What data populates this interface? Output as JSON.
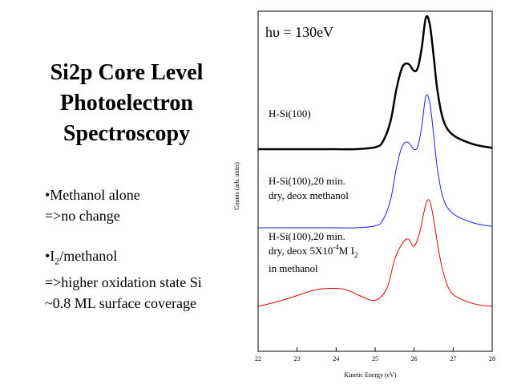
{
  "title_lines": [
    "Si2p Core Level",
    "Photoelectron",
    "Spectroscopy"
  ],
  "bullets": {
    "b1": {
      "line1": "•Methanol alone",
      "line2": "=>no change"
    },
    "b2": {
      "line1_pre": "•I",
      "line1_sub": "2",
      "line1_post": "/methanol",
      "line2": "=>higher oxidation state Si",
      "line3": "~0.8 ML surface coverage"
    }
  },
  "chart_data": {
    "type": "line",
    "xlabel": "Kinetic Energy (eV)",
    "ylabel": "Counts (arb. units)",
    "xlim": [
      22,
      28
    ],
    "x_ticks": [
      "22",
      "23",
      "24",
      "25",
      "26",
      "27",
      "28"
    ],
    "annotation": "hυ = 130eV",
    "colors": {
      "black": "#000000",
      "blue": "#1a1aff",
      "red": "#e00000"
    },
    "series": [
      {
        "label": "H-Si(100)",
        "color": "#000000",
        "x": [
          22.0,
          22.5,
          23.0,
          23.5,
          24.0,
          24.5,
          25.0,
          25.2,
          25.4,
          25.55,
          25.7,
          25.85,
          26.0,
          26.1,
          26.2,
          26.3,
          26.4,
          26.5,
          26.6,
          26.75,
          27.0,
          27.5,
          28.0
        ],
        "y": [
          0.0,
          0.0,
          0.0,
          0.0,
          0.0,
          0.0,
          0.03,
          0.12,
          0.45,
          0.95,
          1.28,
          1.33,
          1.22,
          1.28,
          1.6,
          2.05,
          1.95,
          1.45,
          0.9,
          0.45,
          0.22,
          0.08,
          0.02
        ]
      },
      {
        "label": "H-Si(100),20 min. dry, deox  methanol",
        "color": "#1a1aff",
        "x": [
          22.0,
          22.5,
          23.0,
          23.5,
          24.0,
          24.5,
          25.0,
          25.2,
          25.4,
          25.55,
          25.7,
          25.85,
          26.0,
          26.1,
          26.2,
          26.3,
          26.4,
          26.5,
          26.6,
          26.75,
          27.0,
          27.5,
          28.0
        ],
        "y": [
          0.0,
          0.0,
          0.0,
          0.0,
          0.0,
          0.0,
          0.03,
          0.12,
          0.45,
          0.95,
          1.28,
          1.33,
          1.22,
          1.28,
          1.6,
          2.05,
          1.95,
          1.45,
          0.9,
          0.45,
          0.22,
          0.08,
          0.02
        ]
      },
      {
        "label_line1": "H-Si(100),20 min.",
        "label_line2_pre": "dry, deox  5X10",
        "label_line2_sup": "-4",
        "label_line2_mid": "M I",
        "label_line2_sub": "2",
        "label_line3": "in methanol",
        "color": "#e00000",
        "x": [
          22.0,
          22.5,
          23.0,
          23.5,
          24.0,
          24.3,
          24.6,
          25.0,
          25.3,
          25.5,
          25.7,
          25.85,
          26.0,
          26.15,
          26.3,
          26.4,
          26.5,
          26.65,
          26.8,
          27.0,
          27.5,
          28.0
        ],
        "y": [
          0.0,
          0.08,
          0.18,
          0.28,
          0.3,
          0.27,
          0.18,
          0.1,
          0.3,
          0.78,
          1.05,
          1.12,
          1.0,
          1.25,
          1.7,
          1.75,
          1.45,
          0.85,
          0.45,
          0.2,
          0.05,
          0.0
        ]
      }
    ]
  }
}
